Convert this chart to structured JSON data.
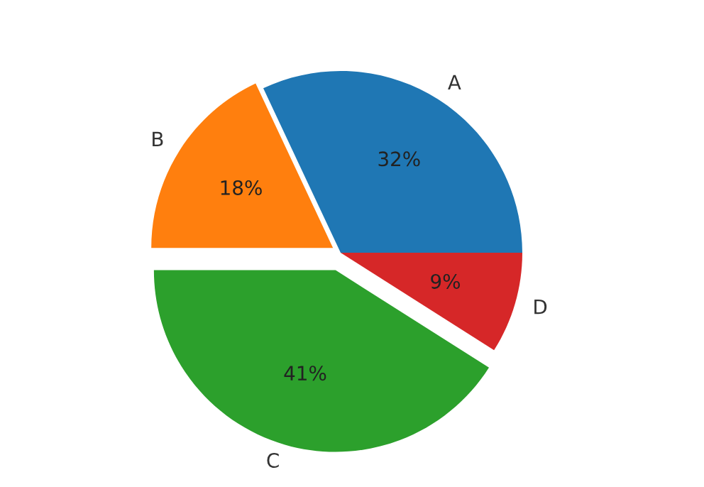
{
  "chart_data": {
    "type": "pie",
    "categories": [
      "A",
      "B",
      "C",
      "D"
    ],
    "values": [
      32,
      18,
      41,
      9
    ],
    "colors": [
      "#1f77b4",
      "#ff7f0e",
      "#2ca02c",
      "#d62728"
    ],
    "value_labels": [
      "32%",
      "18%",
      "41%",
      "9%"
    ]
  }
}
